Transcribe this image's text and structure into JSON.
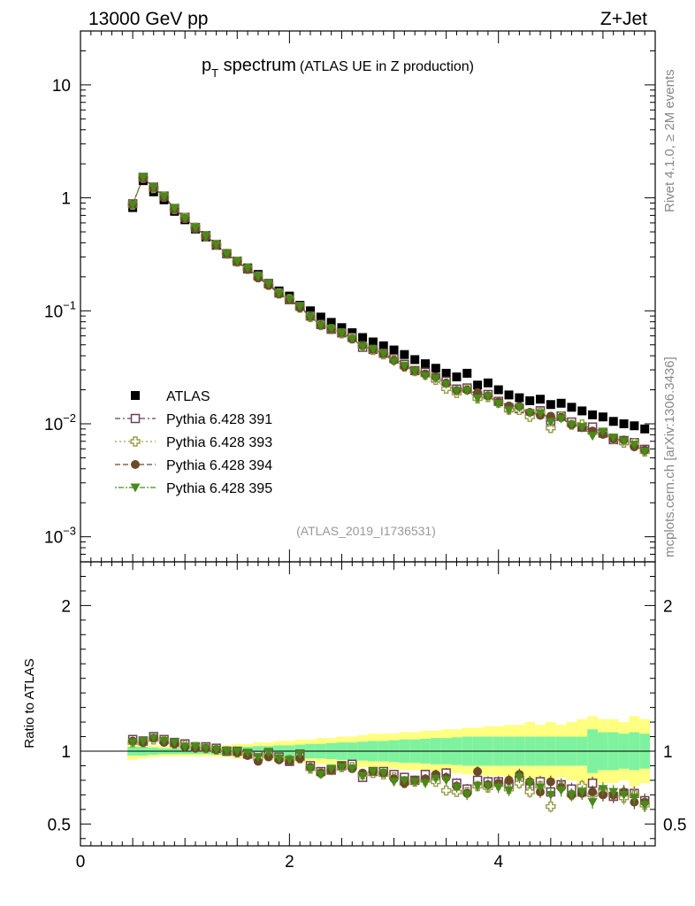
{
  "header": {
    "left": "13000 GeV pp",
    "right": "Z+Jet"
  },
  "title": {
    "main_p": "p",
    "main_sub": "T",
    "main_rest": " spectrum",
    "paren": "(ATLAS UE in Z production)"
  },
  "side": {
    "rivet": "Rivet 4.1.0, ≥ 2M events",
    "mcplots": "mcplots.cern.ch [arXiv:1306.3436]"
  },
  "analysis_id": "(ATLAS_2019_I1736531)",
  "ratio_ylabel": "Ratio to ATLAS",
  "colors": {
    "atlas": "#000000",
    "p391": "#6b3f5a",
    "p393": "#9a9a4a",
    "p394": "#6b4a2a",
    "p395": "#4a8a1a",
    "band_inner": "#7ff2a0",
    "band_outer": "#ffff80"
  },
  "chart_data": {
    "type": "scatter",
    "main": {
      "yscale": "log",
      "ylim": [
        0.0006,
        30
      ],
      "xlim": [
        0,
        5.5
      ],
      "yticks": [
        {
          "v": 10,
          "base": "10",
          "exp": ""
        },
        {
          "v": 1,
          "base": "1",
          "exp": ""
        },
        {
          "v": 0.1,
          "base": "10",
          "exp": "−1"
        },
        {
          "v": 0.01,
          "base": "10",
          "exp": "−2"
        },
        {
          "v": 0.001,
          "base": "10",
          "exp": "−3"
        }
      ]
    },
    "ratio": {
      "ylim": [
        0.35,
        2.3
      ],
      "yticks": [
        {
          "v": 0.5,
          "label": "0.5"
        },
        {
          "v": 1,
          "label": "1"
        },
        {
          "v": 2,
          "label": "2"
        }
      ]
    },
    "xticks": [
      {
        "v": 0,
        "label": "0"
      },
      {
        "v": 2,
        "label": "2"
      },
      {
        "v": 4,
        "label": "4"
      }
    ],
    "x": [
      0.5,
      0.6,
      0.7,
      0.8,
      0.9,
      1.0,
      1.1,
      1.2,
      1.3,
      1.4,
      1.5,
      1.6,
      1.7,
      1.8,
      1.9,
      2.0,
      2.1,
      2.2,
      2.3,
      2.4,
      2.5,
      2.6,
      2.7,
      2.8,
      2.9,
      3.0,
      3.1,
      3.2,
      3.3,
      3.4,
      3.5,
      3.6,
      3.7,
      3.8,
      3.9,
      4.0,
      4.1,
      4.2,
      4.3,
      4.4,
      4.5,
      4.6,
      4.7,
      4.8,
      4.9,
      5.0,
      5.1,
      5.2,
      5.3,
      5.4
    ],
    "legend": [
      {
        "key": "atlas",
        "label": "ATLAS",
        "marker": "square"
      },
      {
        "key": "p391",
        "label": "Pythia 6.428 391",
        "marker": "open-square"
      },
      {
        "key": "p393",
        "label": "Pythia 6.428 393",
        "marker": "open-cross"
      },
      {
        "key": "p394",
        "label": "Pythia 6.428 394",
        "marker": "circle"
      },
      {
        "key": "p395",
        "label": "Pythia 6.428 395",
        "marker": "triangle-down"
      }
    ],
    "atlas_values": [
      0.82,
      1.42,
      1.13,
      0.96,
      0.76,
      0.64,
      0.53,
      0.45,
      0.38,
      0.32,
      0.275,
      0.24,
      0.21,
      0.175,
      0.15,
      0.135,
      0.112,
      0.1,
      0.088,
      0.079,
      0.071,
      0.064,
      0.058,
      0.053,
      0.049,
      0.045,
      0.041,
      0.037,
      0.034,
      0.031,
      0.028,
      0.026,
      0.028,
      0.022,
      0.023,
      0.02,
      0.018,
      0.017,
      0.016,
      0.0165,
      0.0148,
      0.0152,
      0.014,
      0.013,
      0.012,
      0.0115,
      0.0105,
      0.01,
      0.0096,
      0.009
    ],
    "band_inner_halfwidth": [
      0.03,
      0.03,
      0.025,
      0.02,
      0.02,
      0.02,
      0.02,
      0.02,
      0.025,
      0.025,
      0.03,
      0.03,
      0.035,
      0.035,
      0.04,
      0.04,
      0.045,
      0.05,
      0.05,
      0.055,
      0.06,
      0.06,
      0.065,
      0.07,
      0.07,
      0.075,
      0.08,
      0.08,
      0.085,
      0.09,
      0.09,
      0.095,
      0.1,
      0.1,
      0.1,
      0.1,
      0.1,
      0.1,
      0.1,
      0.1,
      0.1,
      0.1,
      0.1,
      0.1,
      0.15,
      0.13,
      0.13,
      0.12,
      0.13,
      0.12
    ],
    "band_outer_halfwidth": [
      0.06,
      0.05,
      0.04,
      0.035,
      0.035,
      0.035,
      0.035,
      0.035,
      0.04,
      0.04,
      0.05,
      0.05,
      0.06,
      0.06,
      0.07,
      0.07,
      0.08,
      0.08,
      0.09,
      0.09,
      0.1,
      0.1,
      0.11,
      0.12,
      0.12,
      0.12,
      0.13,
      0.13,
      0.14,
      0.14,
      0.15,
      0.15,
      0.16,
      0.16,
      0.17,
      0.17,
      0.18,
      0.18,
      0.2,
      0.18,
      0.2,
      0.18,
      0.2,
      0.22,
      0.24,
      0.22,
      0.22,
      0.2,
      0.24,
      0.22
    ],
    "ratios": {
      "p391": [
        1.08,
        1.07,
        1.1,
        1.08,
        1.06,
        1.05,
        1.03,
        1.03,
        1.02,
        1.0,
        1.0,
        0.98,
        0.97,
        0.99,
        0.96,
        0.93,
        0.98,
        0.9,
        0.86,
        0.87,
        0.9,
        0.91,
        0.82,
        0.86,
        0.86,
        0.84,
        0.82,
        0.8,
        0.84,
        0.82,
        0.85,
        0.78,
        0.74,
        0.8,
        0.79,
        0.79,
        0.77,
        0.8,
        0.76,
        0.79,
        0.72,
        0.77,
        0.74,
        0.72,
        0.78,
        0.72,
        0.69,
        0.71,
        0.71,
        0.66
      ],
      "p393": [
        1.06,
        1.06,
        1.08,
        1.07,
        1.05,
        1.04,
        1.03,
        1.02,
        1.01,
        1.0,
        0.99,
        0.98,
        0.95,
        0.97,
        0.95,
        0.94,
        0.95,
        0.88,
        0.85,
        0.87,
        0.89,
        0.89,
        0.84,
        0.85,
        0.84,
        0.82,
        0.78,
        0.79,
        0.8,
        0.79,
        0.73,
        0.72,
        0.72,
        0.76,
        0.75,
        0.77,
        0.74,
        0.78,
        0.72,
        0.76,
        0.62,
        0.76,
        0.7,
        0.76,
        0.7,
        0.72,
        0.7,
        0.68,
        0.7,
        0.63
      ],
      "p394": [
        1.07,
        1.06,
        1.09,
        1.06,
        1.05,
        1.03,
        1.02,
        1.02,
        1.01,
        1.0,
        0.99,
        0.97,
        0.93,
        0.96,
        0.94,
        0.93,
        0.95,
        0.89,
        0.85,
        0.87,
        0.9,
        0.88,
        0.85,
        0.86,
        0.85,
        0.81,
        0.78,
        0.8,
        0.81,
        0.84,
        0.82,
        0.76,
        0.71,
        0.86,
        0.77,
        0.78,
        0.8,
        0.84,
        0.79,
        0.72,
        0.79,
        0.75,
        0.7,
        0.71,
        0.72,
        0.7,
        0.7,
        0.72,
        0.65,
        0.65
      ],
      "p395": [
        1.06,
        1.07,
        1.09,
        1.07,
        1.06,
        1.03,
        1.03,
        1.02,
        1.01,
        1.0,
        1.0,
        0.99,
        0.96,
        0.99,
        0.95,
        0.94,
        0.98,
        0.88,
        0.84,
        0.88,
        0.89,
        0.88,
        0.83,
        0.86,
        0.85,
        0.79,
        0.8,
        0.79,
        0.78,
        0.81,
        0.8,
        0.75,
        0.7,
        0.76,
        0.76,
        0.75,
        0.73,
        0.82,
        0.78,
        0.75,
        0.7,
        0.73,
        0.7,
        0.72,
        0.65,
        0.74,
        0.72,
        0.7,
        0.68,
        0.63
      ]
    }
  }
}
